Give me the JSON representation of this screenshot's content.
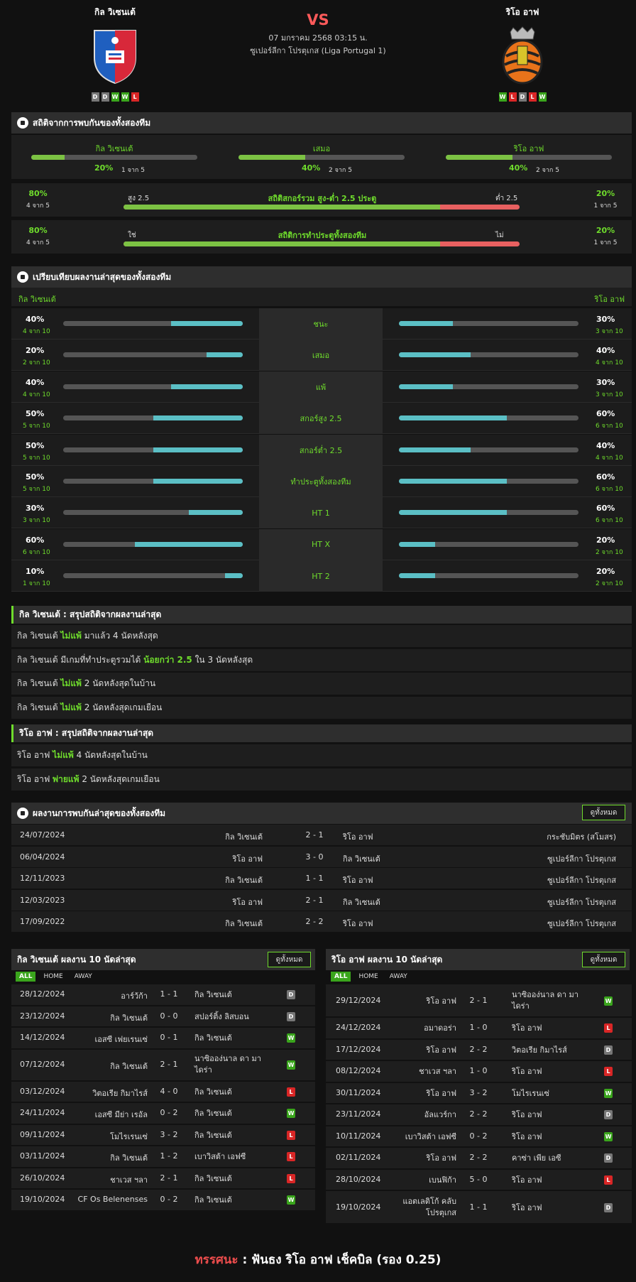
{
  "header": {
    "home_team": "กิล วิเซนเต้",
    "away_team": "ริโอ อาฟ",
    "vs": "VS",
    "date": "07 มกราคม 2568 03:15 น.",
    "league": "ซูเปอร์ลีกา โปรตุเกส (Liga Portugal 1)",
    "home_form": [
      "D",
      "D",
      "W",
      "W",
      "L"
    ],
    "away_form": [
      "W",
      "L",
      "D",
      "L",
      "W"
    ]
  },
  "colors": {
    "win": "#3aa51c",
    "draw": "#777777",
    "loss": "#d92626",
    "accent": "#6fdc2c",
    "bar_green": "#7cc243",
    "bar_cyan": "#5bbfc5",
    "bar_red": "#e86060"
  },
  "h2h_stats": {
    "title": "สถิติจากการพบกันของทั้งสองทีม",
    "cols": [
      {
        "label": "กิล วิเซนเต้",
        "pct": "20%",
        "count": "1 จาก 5",
        "fill": 0.2
      },
      {
        "label": "เสมอ",
        "pct": "40%",
        "count": "2 จาก 5",
        "fill": 0.4
      },
      {
        "label": "ริโอ อาฟ",
        "pct": "40%",
        "count": "2 จาก 5",
        "fill": 0.4
      }
    ],
    "rows": [
      {
        "title": "สถิติสกอร์รวม สูง-ต่ำ 2.5 ประตู",
        "left_label": "สูง 2.5",
        "right_label": "ต่ำ 2.5",
        "left_pct": "80%",
        "left_count": "4 จาก 5",
        "right_pct": "20%",
        "right_count": "1 จาก 5",
        "fill": 0.8
      },
      {
        "title": "สถิติการทำประตูทั้งสองทีม",
        "left_label": "ใช่",
        "right_label": "ไม่",
        "left_pct": "80%",
        "left_count": "4 จาก 5",
        "right_pct": "20%",
        "right_count": "1 จาก 5",
        "fill": 0.8
      }
    ]
  },
  "compare": {
    "title": "เปรียบเทียบผลงานล่าสุดของทั้งสองทีม",
    "home": "กิล วิเซนเต้",
    "away": "ริโอ อาฟ",
    "rows": [
      {
        "label": "ชนะ",
        "hp": "40%",
        "hc": "4 จาก 10",
        "hf": 0.4,
        "ap": "30%",
        "ac": "3 จาก 10",
        "af": 0.3
      },
      {
        "label": "เสมอ",
        "hp": "20%",
        "hc": "2 จาก 10",
        "hf": 0.2,
        "ap": "40%",
        "ac": "4 จาก 10",
        "af": 0.4
      },
      {
        "label": "แพ้",
        "hp": "40%",
        "hc": "4 จาก 10",
        "hf": 0.4,
        "ap": "30%",
        "ac": "3 จาก 10",
        "af": 0.3
      },
      {
        "label": "สกอร์สูง 2.5",
        "hp": "50%",
        "hc": "5 จาก 10",
        "hf": 0.5,
        "ap": "60%",
        "ac": "6 จาก 10",
        "af": 0.6
      },
      {
        "label": "สกอร์ต่ำ 2.5",
        "hp": "50%",
        "hc": "5 จาก 10",
        "hf": 0.5,
        "ap": "40%",
        "ac": "4 จาก 10",
        "af": 0.4
      },
      {
        "label": "ทำประตูทั้งสองทีม",
        "hp": "50%",
        "hc": "5 จาก 10",
        "hf": 0.5,
        "ap": "60%",
        "ac": "6 จาก 10",
        "af": 0.6
      },
      {
        "label": "HT 1",
        "hp": "30%",
        "hc": "3 จาก 10",
        "hf": 0.3,
        "ap": "60%",
        "ac": "6 จาก 10",
        "af": 0.6
      },
      {
        "label": "HT X",
        "hp": "60%",
        "hc": "6 จาก 10",
        "hf": 0.6,
        "ap": "20%",
        "ac": "2 จาก 10",
        "af": 0.2
      },
      {
        "label": "HT 2",
        "hp": "10%",
        "hc": "1 จาก 10",
        "hf": 0.1,
        "ap": "20%",
        "ac": "2 จาก 10",
        "af": 0.2
      }
    ]
  },
  "home_summary": {
    "title": "กิล วิเซนเต้ : สรุปสถิติจากผลงานล่าสุด",
    "rows": [
      {
        "a": "กิล วิเซนเต้ ",
        "b": "ไม่แพ้",
        "c": " มาแล้ว 4 นัดหลังสุด"
      },
      {
        "a": "กิล วิเซนเต้ มีเกมที่ทำประตูรวมได้ ",
        "b": "น้อยกว่า 2.5",
        "c": " ใน 3 นัดหลังสุด"
      },
      {
        "a": "กิล วิเซนเต้ ",
        "b": "ไม่แพ้",
        "c": " 2 นัดหลังสุดในบ้าน"
      },
      {
        "a": "กิล วิเซนเต้ ",
        "b": "ไม่แพ้",
        "c": " 2 นัดหลังสุดเกมเยือน"
      }
    ]
  },
  "away_summary": {
    "title": "ริโอ อาฟ : สรุปสถิติจากผลงานล่าสุด",
    "rows": [
      {
        "a": "ริโอ อาฟ ",
        "b": "ไม่แพ้",
        "c": " 4 นัดหลังสุดในบ้าน"
      },
      {
        "a": "ริโอ อาฟ ",
        "b": "พ่ายแพ้",
        "c": " 2 นัดหลังสุดเกมเยือน"
      }
    ]
  },
  "h2h_results": {
    "title": "ผลงานการพบกันล่าสุดของทั้งสองทีม",
    "view_all": "ดูทั้งหมด",
    "rows": [
      {
        "date": "24/07/2024",
        "home": "กิล วิเซนเต้",
        "score": "2 - 1",
        "away": "ริโอ อาฟ",
        "comp": "กระชับมิตร (สโมสร)"
      },
      {
        "date": "06/04/2024",
        "home": "ริโอ อาฟ",
        "score": "3 - 0",
        "away": "กิล วิเซนเต้",
        "comp": "ซูเปอร์ลีกา โปรตุเกส"
      },
      {
        "date": "12/11/2023",
        "home": "กิล วิเซนเต้",
        "score": "1 - 1",
        "away": "ริโอ อาฟ",
        "comp": "ซูเปอร์ลีกา โปรตุเกส"
      },
      {
        "date": "12/03/2023",
        "home": "ริโอ อาฟ",
        "score": "2 - 1",
        "away": "กิล วิเซนเต้",
        "comp": "ซูเปอร์ลีกา โปรตุเกส"
      },
      {
        "date": "17/09/2022",
        "home": "กิล วิเซนเต้",
        "score": "2 - 2",
        "away": "ริโอ อาฟ",
        "comp": "ซูเปอร์ลีกา โปรตุเกส"
      }
    ]
  },
  "home_last10": {
    "title": "กิล วิเซนเต้ ผลงาน 10 นัดล่าสุด",
    "view_all": "ดูทั้งหมด",
    "tabs": [
      "ALL",
      "HOME",
      "AWAY"
    ],
    "rows": [
      {
        "date": "28/12/2024",
        "home": "อาร์ว้ก้า",
        "score": "1 - 1",
        "away": "กิล วิเซนเต้",
        "r": "D"
      },
      {
        "date": "23/12/2024",
        "home": "กิล วิเซนเต้",
        "score": "0 - 0",
        "away": "สปอร์ติ้ง ลิสบอน",
        "r": "D"
      },
      {
        "date": "14/12/2024",
        "home": "เอสซี เฟยเรนเซ่",
        "score": "0 - 1",
        "away": "กิล วิเซนเต้",
        "r": "W"
      },
      {
        "date": "07/12/2024",
        "home": "กิล วิเซนเต้",
        "score": "2 - 1",
        "away": "นาซิออง่นาล ดา มา ไดร่า",
        "r": "W"
      },
      {
        "date": "03/12/2024",
        "home": "วิตอเรีย กิมาไรส์",
        "score": "4 - 0",
        "away": "กิล วิเซนเต้",
        "r": "L"
      },
      {
        "date": "24/11/2024",
        "home": "เอสซี มีย่า เรอัล",
        "score": "0 - 2",
        "away": "กิล วิเซนเต้",
        "r": "W"
      },
      {
        "date": "09/11/2024",
        "home": "โมไรเรนเซ่",
        "score": "3 - 2",
        "away": "กิล วิเซนเต้",
        "r": "L"
      },
      {
        "date": "03/11/2024",
        "home": "กิล วิเซนเต้",
        "score": "1 - 2",
        "away": "เบาวิสต้า เอฟซี",
        "r": "L"
      },
      {
        "date": "26/10/2024",
        "home": "ชาเวส ฯลา",
        "score": "2 - 1",
        "away": "กิล วิเซนเต้",
        "r": "L"
      },
      {
        "date": "19/10/2024",
        "home": "CF Os Belenenses",
        "score": "0 - 2",
        "away": "กิล วิเซนเต้",
        "r": "W"
      }
    ]
  },
  "away_last10": {
    "title": "ริโอ อาฟ ผลงาน 10 นัดล่าสุด",
    "view_all": "ดูทั้งหมด",
    "tabs": [
      "ALL",
      "HOME",
      "AWAY"
    ],
    "rows": [
      {
        "date": "29/12/2024",
        "home": "ริโอ อาฟ",
        "score": "2 - 1",
        "away": "นาซิออง่นาล ดา มา ไดร่า",
        "r": "W"
      },
      {
        "date": "24/12/2024",
        "home": "อมาดอร่า",
        "score": "1 - 0",
        "away": "ริโอ อาฟ",
        "r": "L"
      },
      {
        "date": "17/12/2024",
        "home": "ริโอ อาฟ",
        "score": "2 - 2",
        "away": "วิตอเรีย กิมาไรส์",
        "r": "D"
      },
      {
        "date": "08/12/2024",
        "home": "ชาเวส ฯลา",
        "score": "1 - 0",
        "away": "ริโอ อาฟ",
        "r": "L"
      },
      {
        "date": "30/11/2024",
        "home": "ริโอ อาฟ",
        "score": "3 - 2",
        "away": "โมไรเรนเซ่",
        "r": "W"
      },
      {
        "date": "23/11/2024",
        "home": "อัลแวร์กา",
        "score": "2 - 2",
        "away": "ริโอ อาฟ",
        "r": "D"
      },
      {
        "date": "10/11/2024",
        "home": "เบาวิสต้า เอฟซี",
        "score": "0 - 2",
        "away": "ริโอ อาฟ",
        "r": "W"
      },
      {
        "date": "02/11/2024",
        "home": "ริโอ อาฟ",
        "score": "2 - 2",
        "away": "คาซ่า เพีย เอซี",
        "r": "D"
      },
      {
        "date": "28/10/2024",
        "home": "เบนฟิก้า",
        "score": "5 - 0",
        "away": "ริโอ อาฟ",
        "r": "L"
      },
      {
        "date": "19/10/2024",
        "home": "แอตเลติโก้ คลับ โปรตุเกส",
        "score": "1 - 1",
        "away": "ริโอ อาฟ",
        "r": "D"
      }
    ]
  },
  "verdict": {
    "label": "ทรรศนะ",
    "sep": " : ",
    "text": "ฟันธง ริโอ อาฟ เช็คบิล (รอง 0.25)"
  }
}
